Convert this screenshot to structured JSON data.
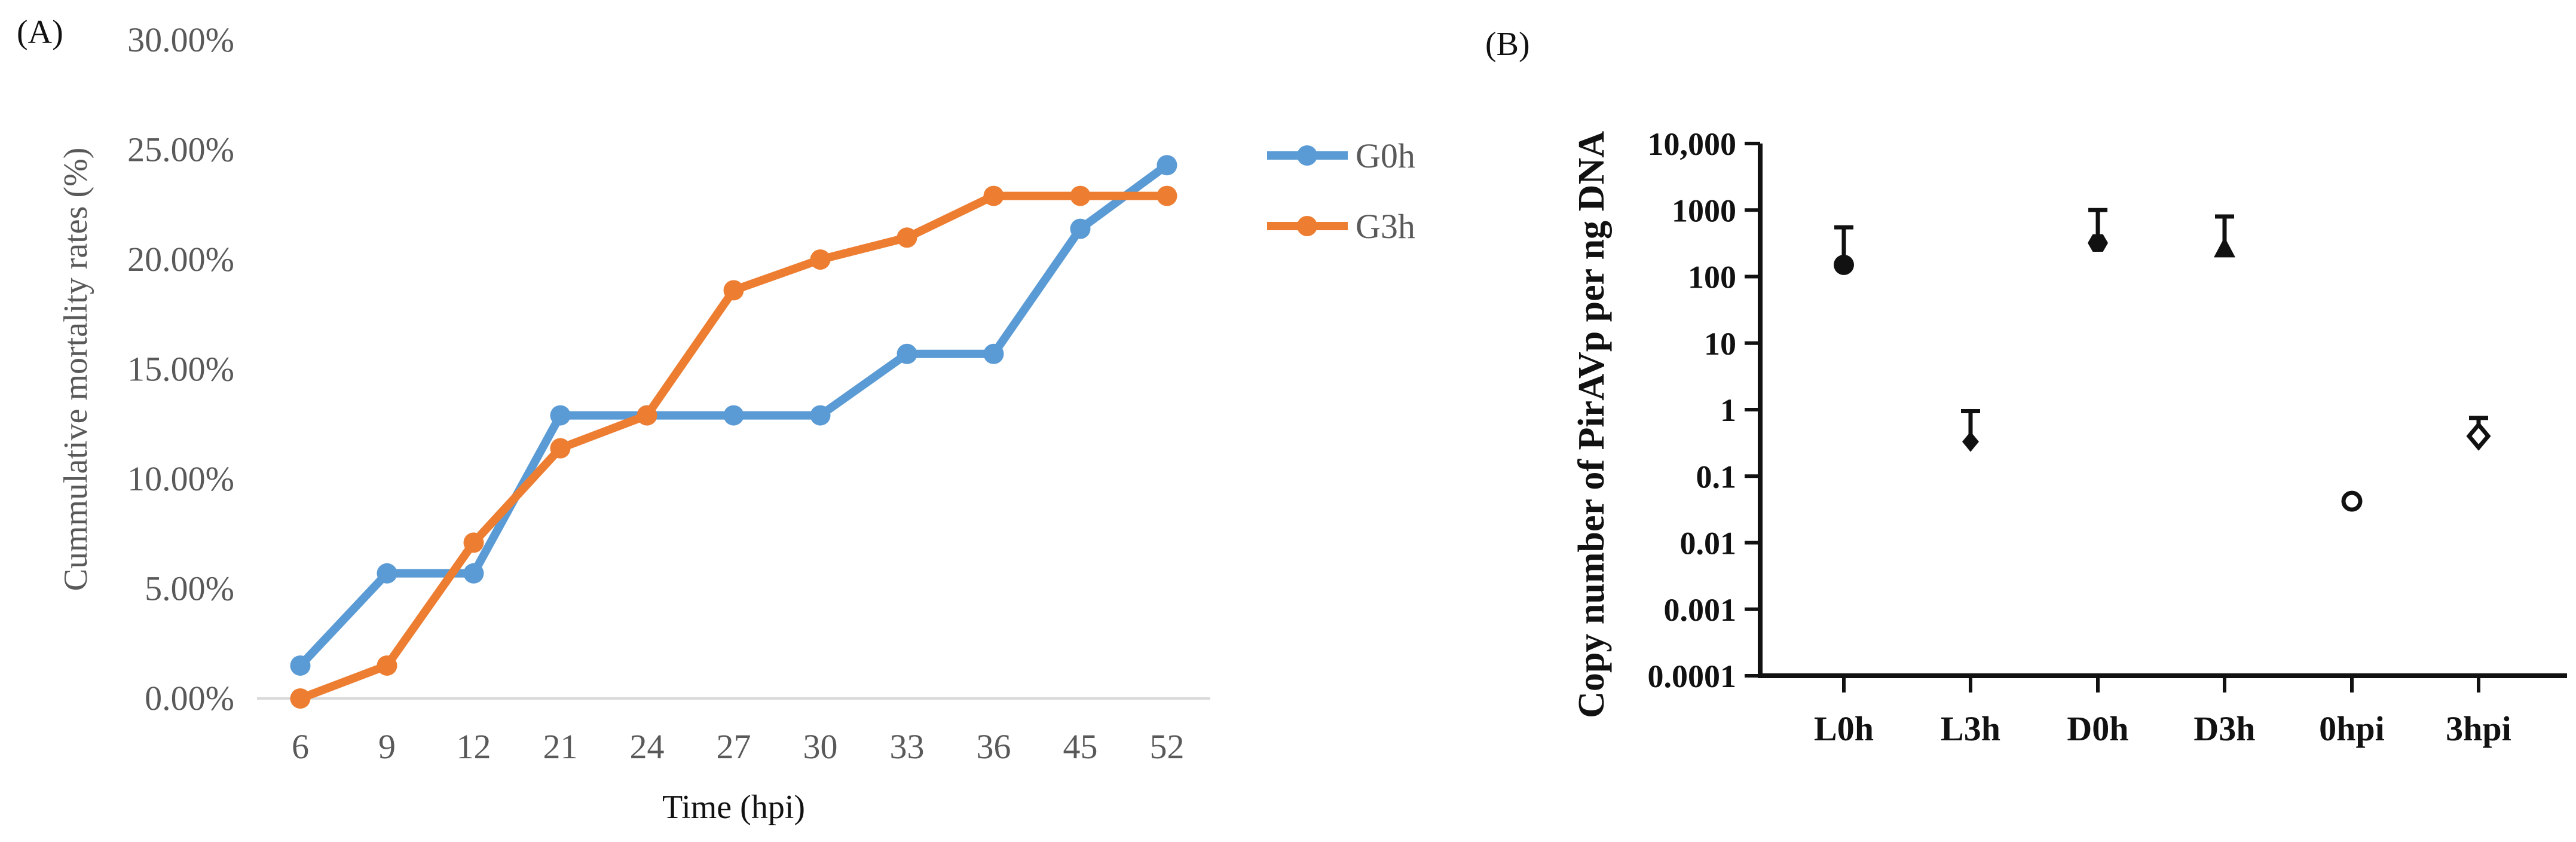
{
  "panel_a_label": "(A)",
  "panel_b_label": "(B)",
  "colors": {
    "g0h": "#5B9BD5",
    "g3h": "#ED7D31",
    "axisA": "#D9D9D9",
    "textA": "#595959",
    "black": "#111111"
  },
  "chart_data": [
    {
      "type": "line",
      "title": "",
      "xlabel": "Time (hpi)",
      "ylabel": "Cummulative mortality rates (%)",
      "categories": [
        "6",
        "9",
        "12",
        "21",
        "24",
        "27",
        "30",
        "33",
        "36",
        "45",
        "52"
      ],
      "ylim": [
        0,
        30
      ],
      "yticks": [
        "0.00%",
        "5.00%",
        "10.00%",
        "15.00%",
        "20.00%",
        "25.00%",
        "30.00%"
      ],
      "legend_position": "right",
      "series": [
        {
          "name": "G0h",
          "values": [
            1.5,
            5.7,
            5.7,
            12.9,
            12.9,
            12.9,
            12.9,
            15.7,
            15.7,
            21.4,
            24.3
          ]
        },
        {
          "name": "G3h",
          "values": [
            0.0,
            1.5,
            7.1,
            11.4,
            12.9,
            18.6,
            20.0,
            21.0,
            22.9,
            22.9,
            22.9
          ]
        }
      ]
    },
    {
      "type": "scatter",
      "title": "",
      "xlabel": "",
      "ylabel": "Copy number of PirAVp per ng DNA",
      "yscale": "log",
      "ylim": [
        0.0001,
        10000
      ],
      "yticks": [
        "10,000",
        "1000",
        "100",
        "10",
        "1",
        "0.1",
        "0.01",
        "0.001",
        "0.0001"
      ],
      "categories": [
        "L0h",
        "L3h",
        "D0h",
        "D3h",
        "0hpi",
        "3hpi"
      ],
      "markers": [
        "circle",
        "diamond",
        "hexagon",
        "triangle",
        "circle-open",
        "diamond-open"
      ],
      "values": [
        150,
        0.33,
        320,
        260,
        0.042,
        0.4
      ],
      "error_upper": [
        550,
        0.95,
        1000,
        800,
        0.042,
        0.75
      ]
    }
  ]
}
